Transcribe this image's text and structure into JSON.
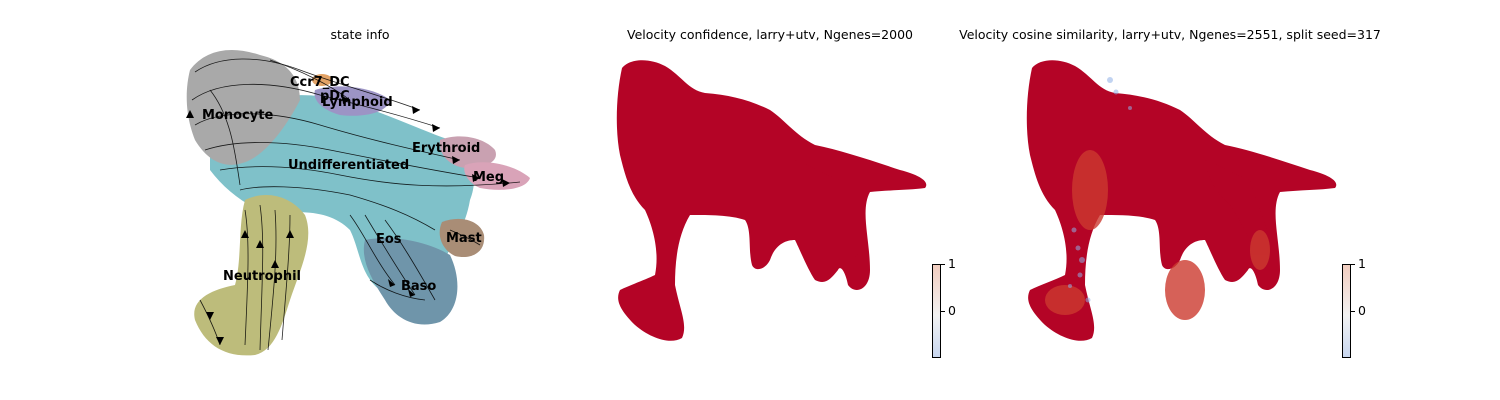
{
  "chart_data": [
    {
      "type": "scatter",
      "title": "state info",
      "annotations": [
        "Ccr7_DC",
        "pDC",
        "Lymphoid",
        "Monocyte",
        "Erythroid",
        "Undifferentiated",
        "Meg",
        "Eos",
        "Mast",
        "Neutrophil",
        "Baso"
      ],
      "overlay": "velocity streamlines (black)",
      "grid": false,
      "axes": "off"
    },
    {
      "type": "scatter",
      "title": "Velocity confidence, larry+utv, Ngenes=2000",
      "colorbar": {
        "ticks": [
          "0",
          "1"
        ],
        "colormap": "coolwarm"
      },
      "value_summary": "nearly all cells near 1 (dark red)",
      "grid": false,
      "axes": "off"
    },
    {
      "type": "scatter",
      "title": "Velocity cosine similarity, larry+utv, Ngenes=2551, split seed=317",
      "colorbar": {
        "ticks": [
          "0",
          "1"
        ],
        "colormap": "coolwarm"
      },
      "value_summary": "mostly near 1 (red), scattered low values (blue) on left edge",
      "grid": false,
      "axes": "off"
    }
  ],
  "colors": {
    "monocyte": "#a9a9a9",
    "undifferentiated": "#7fc1c9",
    "neutrophil": "#bdbc7b",
    "baso": "#6f95aa",
    "mast": "#a98d76",
    "erythroid": "#c9a1b1",
    "meg": "#d9a3b8",
    "lymphoid": "#9c94c5",
    "ccr7_dc": "#e3a366",
    "high": "#b40426",
    "mid": "#cc3a2f",
    "low": "#8fb0e6"
  }
}
